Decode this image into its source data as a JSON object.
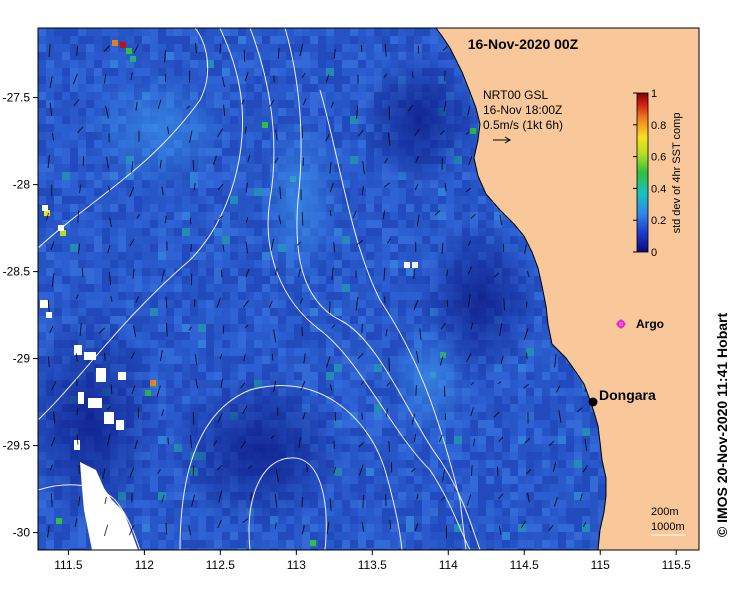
{
  "map": {
    "title": "16-Nov-2020 00Z",
    "product": {
      "line1": "NRT00 GSL",
      "line2": "16-Nov 18:00Z",
      "scale": "0.5m/s (1kt 6h)"
    },
    "colorbar": {
      "label": "std dev of 4hr SST comp",
      "ticks": [
        "1",
        "0.8",
        "0.6",
        "0.4",
        "0.2",
        "0"
      ],
      "range": [
        0,
        1
      ]
    },
    "credit": "© IMOS 20-Nov-2020 11:41 Hobart",
    "depth_legend": {
      "line1": "200m",
      "line2": "1000m"
    },
    "places": {
      "argo": "Argo",
      "dongara": "Dongara"
    },
    "axes": {
      "x_labels": [
        "111.5",
        "112",
        "112.5",
        "113",
        "113.5",
        "114",
        "114.5",
        "115",
        "115.5"
      ],
      "x_values": [
        111.5,
        112,
        112.5,
        113,
        113.5,
        114,
        114.5,
        115,
        115.5
      ],
      "y_labels": [
        "-27.5",
        "-28",
        "-28.5",
        "-29",
        "-29.5",
        "-30"
      ],
      "y_values": [
        -27.5,
        -28,
        -28.5,
        -29,
        -29.5,
        -30
      ],
      "lon_range": [
        111.3,
        115.65
      ],
      "lat_range": [
        -27.1,
        -30.1
      ]
    },
    "colors": {
      "land": "#f8c89a",
      "sea_base": "#2c5ed0",
      "sea_deep": "#10208e",
      "contour": "#ffffff",
      "argo": "#e020e0",
      "arrow": "#000000"
    }
  }
}
